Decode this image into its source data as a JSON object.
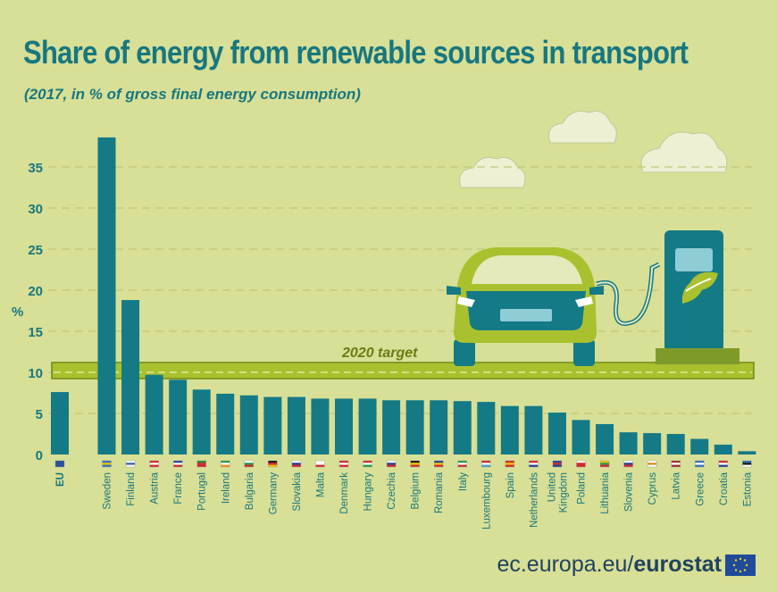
{
  "title": "Share of energy from renewable sources in transport",
  "subtitle": "(2017, in % of gross final energy consumption)",
  "chart_data": {
    "type": "bar",
    "categories": [
      "EU",
      "Sweden",
      "Finland",
      "Austria",
      "France",
      "Portugal",
      "Ireland",
      "Bulgaria",
      "Germany",
      "Slovakia",
      "Malta",
      "Denmark",
      "Hungary",
      "Czechia",
      "Belgium",
      "Romania",
      "Italy",
      "Luxembourg",
      "Spain",
      "Netherlands",
      "United Kingdom",
      "Poland",
      "Lithuania",
      "Slovenia",
      "Cyprus",
      "Latvia",
      "Greece",
      "Croatia",
      "Estonia"
    ],
    "values": [
      7.6,
      38.6,
      18.8,
      9.7,
      9.1,
      7.9,
      7.4,
      7.2,
      7.0,
      7.0,
      6.8,
      6.8,
      6.8,
      6.6,
      6.6,
      6.6,
      6.5,
      6.4,
      5.9,
      5.9,
      5.1,
      4.2,
      3.7,
      2.7,
      2.6,
      2.5,
      1.9,
      1.2,
      0.4
    ],
    "ylabel": "%",
    "ylim": [
      0,
      38
    ],
    "yticks": [
      0,
      5,
      10,
      15,
      20,
      25,
      30,
      35
    ],
    "grid": true,
    "target": {
      "label": "2020 target",
      "value": 10
    },
    "bar_color": "#147a86",
    "target_color": "#9bb82a"
  },
  "footer": {
    "url": "ec.europa.eu/",
    "brand": "eurostat"
  },
  "colors": {
    "background": "#d8df96",
    "title": "#17777f",
    "footer": "#20435f"
  }
}
